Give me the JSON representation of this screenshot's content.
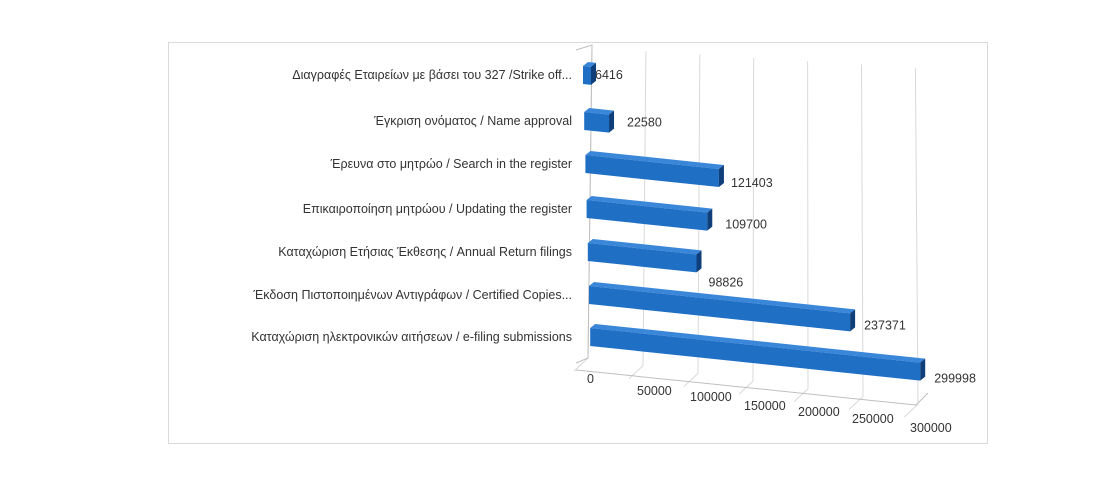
{
  "chart_data": {
    "type": "bar",
    "orientation": "horizontal",
    "style": "3d",
    "title": "",
    "xlabel": "",
    "ylabel": "",
    "categories": [
      "Διαγραφές Εταιρείων  με  βάσει του 327 /Strike off...",
      "Έγκριση ονόματος / Name approval",
      "Έρευνα στο μητρώο / Search in the register",
      "Επικαιροποίηση μητρώου / Updating the register",
      "Καταχώριση Ετήσιας Έκθεσης / Annual Return filings",
      "Έκδοση Πιστοποιημένων Αντιγράφων / Certified Copies...",
      "Καταχώριση ηλεκτρονικών αιτήσεων / e-filing submissions"
    ],
    "values": [
      6416,
      22580,
      121403,
      109700,
      98826,
      237371,
      299998
    ],
    "data_labels": [
      "6416",
      "22580",
      "121403",
      "109700",
      "98826",
      "237371",
      "299998"
    ],
    "xlim": [
      0,
      300000
    ],
    "ticks": [
      "0",
      "50000",
      "100000",
      "150000",
      "200000",
      "250000",
      "300000"
    ],
    "tick_values": [
      0,
      50000,
      100000,
      150000,
      200000,
      250000,
      300000
    ],
    "grid": true,
    "legend": "none",
    "colors": {
      "bar_front": "#1f6fc5",
      "bar_top": "#2f7fd6",
      "bar_end": "#0f3f7a",
      "grid": "#d9d9d9"
    }
  }
}
